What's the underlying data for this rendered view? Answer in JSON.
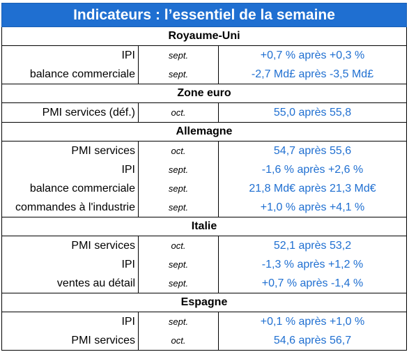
{
  "title": "Indicateurs : l’essentiel de la semaine",
  "sections": [
    {
      "name": "Royaume-Uni",
      "rows": [
        {
          "label": "IPI",
          "period": "sept.",
          "value": "+0,7 % après +0,3 %"
        },
        {
          "label": "balance commerciale",
          "period": "sept.",
          "value": "-2,7 Md£ après -3,5 Md£"
        }
      ]
    },
    {
      "name": "Zone euro",
      "rows": [
        {
          "label": "PMI services (déf.)",
          "period": "oct.",
          "value": "55,0 après 55,8"
        }
      ]
    },
    {
      "name": "Allemagne",
      "rows": [
        {
          "label": "PMI services",
          "period": "oct.",
          "value": "54,7 après 55,6"
        },
        {
          "label": "IPI",
          "period": "sept.",
          "value": "-1,6 % après +2,6 %"
        },
        {
          "label": "balance commerciale",
          "period": "sept.",
          "value": "21,8 Md€ après 21,3 Md€"
        },
        {
          "label": "commandes à l'industrie",
          "period": "sept.",
          "value": "+1,0 % après +4,1 %"
        }
      ]
    },
    {
      "name": "Italie",
      "rows": [
        {
          "label": "PMI services",
          "period": "oct.",
          "value": "52,1 après 53,2"
        },
        {
          "label": "IPI",
          "period": "sept.",
          "value": "-1,3 % après +1,2 %"
        },
        {
          "label": "ventes au détail",
          "period": "sept.",
          "value": "+0,7 % après -1,4 %"
        }
      ]
    },
    {
      "name": "Espagne",
      "rows": [
        {
          "label": "IPI",
          "period": "sept.",
          "value": "+0,1 % après +1,0 %"
        },
        {
          "label": "PMI services",
          "period": "oct.",
          "value": "54,6 après 56,7"
        }
      ]
    }
  ]
}
